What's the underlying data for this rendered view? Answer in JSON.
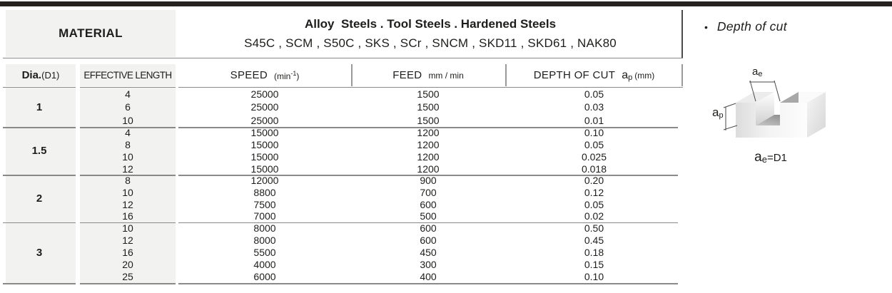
{
  "table": {
    "material_label": "MATERIAL",
    "material_names": "Alloy  Steels . Tool Steels . Hardened Steels",
    "material_grades": "S45C , SCM , S50C , SKS , SCr , SNCM , SKD11 , SKD61 , NAK80",
    "columns": {
      "dia_label": "Dia.",
      "dia_sub": "(D1)",
      "effective_length": "EFFECTIVE LENGTH",
      "speed_label": "SPEED",
      "speed_unit_open": "(min",
      "speed_unit_sup": "-1",
      "speed_unit_close": ")",
      "feed_label": "FEED",
      "feed_unit": "mm / min",
      "depth_label": "DEPTH OF CUT",
      "depth_symbol": "a",
      "depth_symbol_sub": "p",
      "depth_unit": "(mm)"
    },
    "groups": [
      {
        "dia": "1",
        "rows": [
          {
            "length": "4",
            "speed": "25000",
            "feed": "1500",
            "depth": "0.05"
          },
          {
            "length": "6",
            "speed": "25000",
            "feed": "1500",
            "depth": "0.03"
          },
          {
            "length": "10",
            "speed": "25000",
            "feed": "1500",
            "depth": "0.01"
          }
        ]
      },
      {
        "dia": "1.5",
        "rows": [
          {
            "length": "4",
            "speed": "15000",
            "feed": "1200",
            "depth": "0.10"
          },
          {
            "length": "8",
            "speed": "15000",
            "feed": "1200",
            "depth": "0.05"
          },
          {
            "length": "10",
            "speed": "15000",
            "feed": "1200",
            "depth": "0.025"
          },
          {
            "length": "12",
            "speed": "15000",
            "feed": "1200",
            "depth": "0.018"
          }
        ]
      },
      {
        "dia": "2",
        "rows": [
          {
            "length": "8",
            "speed": "12000",
            "feed": "900",
            "depth": "0.20"
          },
          {
            "length": "10",
            "speed": "8800",
            "feed": "700",
            "depth": "0.12"
          },
          {
            "length": "12",
            "speed": "7500",
            "feed": "600",
            "depth": "0.05"
          },
          {
            "length": "16",
            "speed": "7000",
            "feed": "500",
            "depth": "0.02"
          }
        ]
      },
      {
        "dia": "3",
        "rows": [
          {
            "length": "10",
            "speed": "8000",
            "feed": "600",
            "depth": "0.50"
          },
          {
            "length": "12",
            "speed": "8000",
            "feed": "600",
            "depth": "0.45"
          },
          {
            "length": "16",
            "speed": "5500",
            "feed": "450",
            "depth": "0.18"
          },
          {
            "length": "20",
            "speed": "4000",
            "feed": "300",
            "depth": "0.15"
          },
          {
            "length": "25",
            "speed": "6000",
            "feed": "400",
            "depth": "0.10"
          }
        ]
      }
    ]
  },
  "side_panel": {
    "bullet": "•",
    "caption": "Depth of cut",
    "ae_symbol": "a",
    "ae_sub": "e",
    "ap_symbol": "a",
    "ap_sub": "p",
    "equation_symbol": "a",
    "equation_sub": "e",
    "equation_rest": "=D1"
  },
  "colors": {
    "top_bar": "#262220",
    "cell_gray": "#f2f2f0",
    "rule_line": "#8a8a8a",
    "text": "#1d1d1b"
  }
}
